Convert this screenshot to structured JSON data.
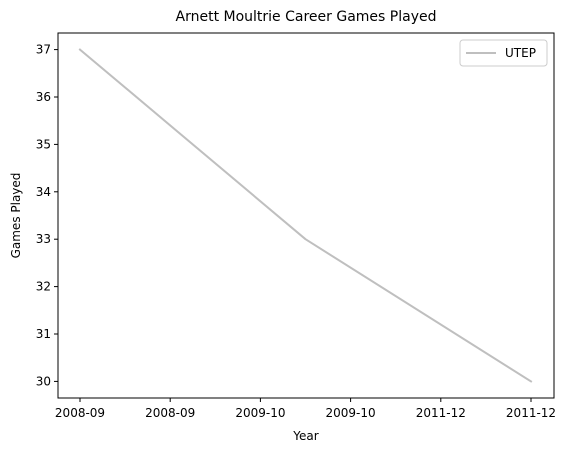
{
  "chart_data": {
    "type": "line",
    "title": "Arnett Moultrie Career Games Played",
    "xlabel": "Year",
    "ylabel": "Games Played",
    "x": [
      "2008-09",
      "2009-10",
      "2011-12"
    ],
    "x_tick_labels": [
      "2008-09",
      "2008-09",
      "2009-10",
      "2009-10",
      "2011-12",
      "2011-12"
    ],
    "y_ticks": [
      30,
      31,
      32,
      33,
      34,
      35,
      36,
      37
    ],
    "ylim": [
      29.65,
      37.35
    ],
    "grid": false,
    "legend": "top-right",
    "series": [
      {
        "name": "UTEP",
        "values": [
          37,
          33,
          30
        ],
        "color": "#bfbfbf"
      }
    ]
  }
}
